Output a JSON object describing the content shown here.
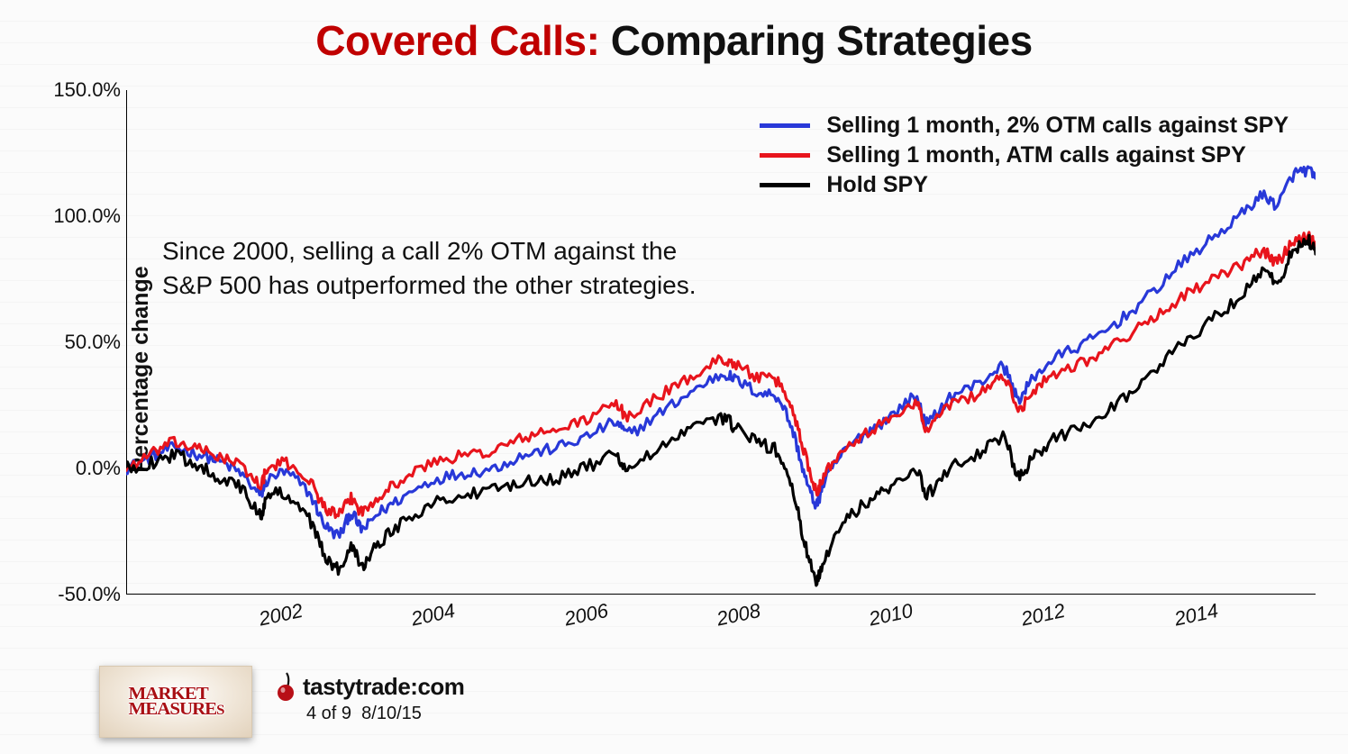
{
  "title": {
    "highlight": "Covered Calls:",
    "rest": " Comparing Strategies",
    "highlight_color": "#c00000",
    "rest_color": "#111111",
    "fontsize": 46
  },
  "chart": {
    "type": "line",
    "ylabel": "Percentage change",
    "ylabel_fontsize": 25,
    "background_color": "#fcfcfc",
    "axis_color": "#000000",
    "line_width": 3.2,
    "x_range": [
      2000,
      2015.6
    ],
    "y_range": [
      -50,
      150
    ],
    "yticks": [
      {
        "v": -50,
        "label": "-50.0%"
      },
      {
        "v": 0,
        "label": "0.0%"
      },
      {
        "v": 50,
        "label": "50.0%"
      },
      {
        "v": 100,
        "label": "100.0%"
      },
      {
        "v": 150,
        "label": "150.0%"
      }
    ],
    "xticks": [
      {
        "v": 2002,
        "label": "2002"
      },
      {
        "v": 2004,
        "label": "2004"
      },
      {
        "v": 2006,
        "label": "2006"
      },
      {
        "v": 2008,
        "label": "2008"
      },
      {
        "v": 2010,
        "label": "2010"
      },
      {
        "v": 2012,
        "label": "2012"
      },
      {
        "v": 2014,
        "label": "2014"
      }
    ],
    "annotation": {
      "text_line1": "Since 2000, selling a call 2% OTM against the",
      "text_line2": "S&P 500 has outperformed the other strategies.",
      "fontsize": 28,
      "color": "#111111"
    },
    "legend": {
      "fontsize": 25,
      "items": [
        {
          "label": "Selling 1 month, 2% OTM calls against SPY",
          "color": "#2838d8"
        },
        {
          "label": "Selling 1 month, ATM calls against SPY",
          "color": "#e8141c"
        },
        {
          "label": "Hold SPY",
          "color": "#000000"
        }
      ]
    },
    "series": [
      {
        "name": "otm2",
        "color": "#2838d8",
        "base": [
          [
            2000.0,
            0
          ],
          [
            2000.3,
            4
          ],
          [
            2000.6,
            8
          ],
          [
            2000.9,
            6
          ],
          [
            2001.2,
            3
          ],
          [
            2001.5,
            -2
          ],
          [
            2001.75,
            -10
          ],
          [
            2001.85,
            -5
          ],
          [
            2002.1,
            -2
          ],
          [
            2002.4,
            -10
          ],
          [
            2002.6,
            -22
          ],
          [
            2002.8,
            -26
          ],
          [
            2002.95,
            -18
          ],
          [
            2003.1,
            -24
          ],
          [
            2003.3,
            -18
          ],
          [
            2003.6,
            -12
          ],
          [
            2004.0,
            -5
          ],
          [
            2004.4,
            -2
          ],
          [
            2004.8,
            0
          ],
          [
            2005.2,
            5
          ],
          [
            2005.6,
            8
          ],
          [
            2006.0,
            12
          ],
          [
            2006.4,
            18
          ],
          [
            2006.6,
            14
          ],
          [
            2007.0,
            22
          ],
          [
            2007.4,
            30
          ],
          [
            2007.8,
            37
          ],
          [
            2008.0,
            35
          ],
          [
            2008.3,
            30
          ],
          [
            2008.55,
            28
          ],
          [
            2008.75,
            14
          ],
          [
            2008.9,
            -3
          ],
          [
            2009.05,
            -14
          ],
          [
            2009.15,
            -6
          ],
          [
            2009.4,
            6
          ],
          [
            2009.7,
            14
          ],
          [
            2010.0,
            20
          ],
          [
            2010.35,
            28
          ],
          [
            2010.5,
            18
          ],
          [
            2010.8,
            28
          ],
          [
            2011.2,
            34
          ],
          [
            2011.5,
            40
          ],
          [
            2011.7,
            28
          ],
          [
            2011.9,
            36
          ],
          [
            2012.2,
            44
          ],
          [
            2012.6,
            50
          ],
          [
            2013.0,
            58
          ],
          [
            2013.4,
            68
          ],
          [
            2013.8,
            80
          ],
          [
            2014.2,
            90
          ],
          [
            2014.6,
            100
          ],
          [
            2014.9,
            108
          ],
          [
            2015.1,
            105
          ],
          [
            2015.3,
            116
          ],
          [
            2015.5,
            118
          ],
          [
            2015.6,
            115
          ]
        ],
        "noise": 2.3
      },
      {
        "name": "atm",
        "color": "#e8141c",
        "base": [
          [
            2000.0,
            0
          ],
          [
            2000.3,
            5
          ],
          [
            2000.6,
            10
          ],
          [
            2000.9,
            8
          ],
          [
            2001.2,
            5
          ],
          [
            2001.5,
            1
          ],
          [
            2001.75,
            -6
          ],
          [
            2001.85,
            -1
          ],
          [
            2002.1,
            2
          ],
          [
            2002.4,
            -5
          ],
          [
            2002.6,
            -15
          ],
          [
            2002.8,
            -18
          ],
          [
            2002.95,
            -12
          ],
          [
            2003.1,
            -17
          ],
          [
            2003.3,
            -11
          ],
          [
            2003.6,
            -5
          ],
          [
            2004.0,
            2
          ],
          [
            2004.4,
            5
          ],
          [
            2004.8,
            7
          ],
          [
            2005.2,
            12
          ],
          [
            2005.6,
            15
          ],
          [
            2006.0,
            19
          ],
          [
            2006.4,
            25
          ],
          [
            2006.6,
            21
          ],
          [
            2007.0,
            29
          ],
          [
            2007.4,
            36
          ],
          [
            2007.8,
            43
          ],
          [
            2008.0,
            41
          ],
          [
            2008.3,
            36
          ],
          [
            2008.55,
            34
          ],
          [
            2008.75,
            22
          ],
          [
            2008.9,
            6
          ],
          [
            2009.05,
            -8
          ],
          [
            2009.15,
            -3
          ],
          [
            2009.4,
            8
          ],
          [
            2009.7,
            14
          ],
          [
            2010.0,
            19
          ],
          [
            2010.35,
            26
          ],
          [
            2010.5,
            16
          ],
          [
            2010.8,
            25
          ],
          [
            2011.2,
            30
          ],
          [
            2011.5,
            36
          ],
          [
            2011.7,
            24
          ],
          [
            2011.9,
            31
          ],
          [
            2012.2,
            38
          ],
          [
            2012.6,
            43
          ],
          [
            2013.0,
            50
          ],
          [
            2013.4,
            58
          ],
          [
            2013.8,
            67
          ],
          [
            2014.2,
            74
          ],
          [
            2014.6,
            80
          ],
          [
            2014.9,
            86
          ],
          [
            2015.1,
            82
          ],
          [
            2015.3,
            90
          ],
          [
            2015.5,
            92
          ],
          [
            2015.6,
            88
          ]
        ],
        "noise": 2.3
      },
      {
        "name": "spy",
        "color": "#000000",
        "base": [
          [
            2000.0,
            0
          ],
          [
            2000.3,
            2
          ],
          [
            2000.6,
            5
          ],
          [
            2000.9,
            2
          ],
          [
            2001.2,
            -3
          ],
          [
            2001.5,
            -8
          ],
          [
            2001.75,
            -18
          ],
          [
            2001.85,
            -12
          ],
          [
            2002.1,
            -10
          ],
          [
            2002.4,
            -20
          ],
          [
            2002.6,
            -34
          ],
          [
            2002.8,
            -40
          ],
          [
            2002.95,
            -30
          ],
          [
            2003.1,
            -38
          ],
          [
            2003.3,
            -30
          ],
          [
            2003.6,
            -22
          ],
          [
            2004.0,
            -14
          ],
          [
            2004.4,
            -11
          ],
          [
            2004.8,
            -9
          ],
          [
            2005.2,
            -5
          ],
          [
            2005.6,
            -4
          ],
          [
            2006.0,
            0
          ],
          [
            2006.4,
            5
          ],
          [
            2006.6,
            0
          ],
          [
            2007.0,
            8
          ],
          [
            2007.4,
            15
          ],
          [
            2007.8,
            20
          ],
          [
            2008.0,
            16
          ],
          [
            2008.3,
            10
          ],
          [
            2008.55,
            6
          ],
          [
            2008.75,
            -10
          ],
          [
            2008.9,
            -30
          ],
          [
            2009.05,
            -44
          ],
          [
            2009.15,
            -36
          ],
          [
            2009.4,
            -22
          ],
          [
            2009.7,
            -14
          ],
          [
            2010.0,
            -8
          ],
          [
            2010.35,
            0
          ],
          [
            2010.5,
            -10
          ],
          [
            2010.8,
            0
          ],
          [
            2011.2,
            6
          ],
          [
            2011.5,
            12
          ],
          [
            2011.7,
            -3
          ],
          [
            2011.9,
            4
          ],
          [
            2012.2,
            12
          ],
          [
            2012.6,
            18
          ],
          [
            2013.0,
            26
          ],
          [
            2013.4,
            36
          ],
          [
            2013.8,
            48
          ],
          [
            2014.2,
            58
          ],
          [
            2014.6,
            68
          ],
          [
            2014.9,
            78
          ],
          [
            2015.1,
            74
          ],
          [
            2015.3,
            86
          ],
          [
            2015.5,
            90
          ],
          [
            2015.6,
            85
          ]
        ],
        "noise": 2.6
      }
    ]
  },
  "footer": {
    "market_measures_label": "MARKET\nMEASURES",
    "market_measures_text_color": "#a90f14",
    "tastytrade_label": "tastytrade",
    "tastytrade_suffix": "com",
    "cherry_color": "#b80f17",
    "page_counter": "4 of 9",
    "date": "8/10/15"
  }
}
